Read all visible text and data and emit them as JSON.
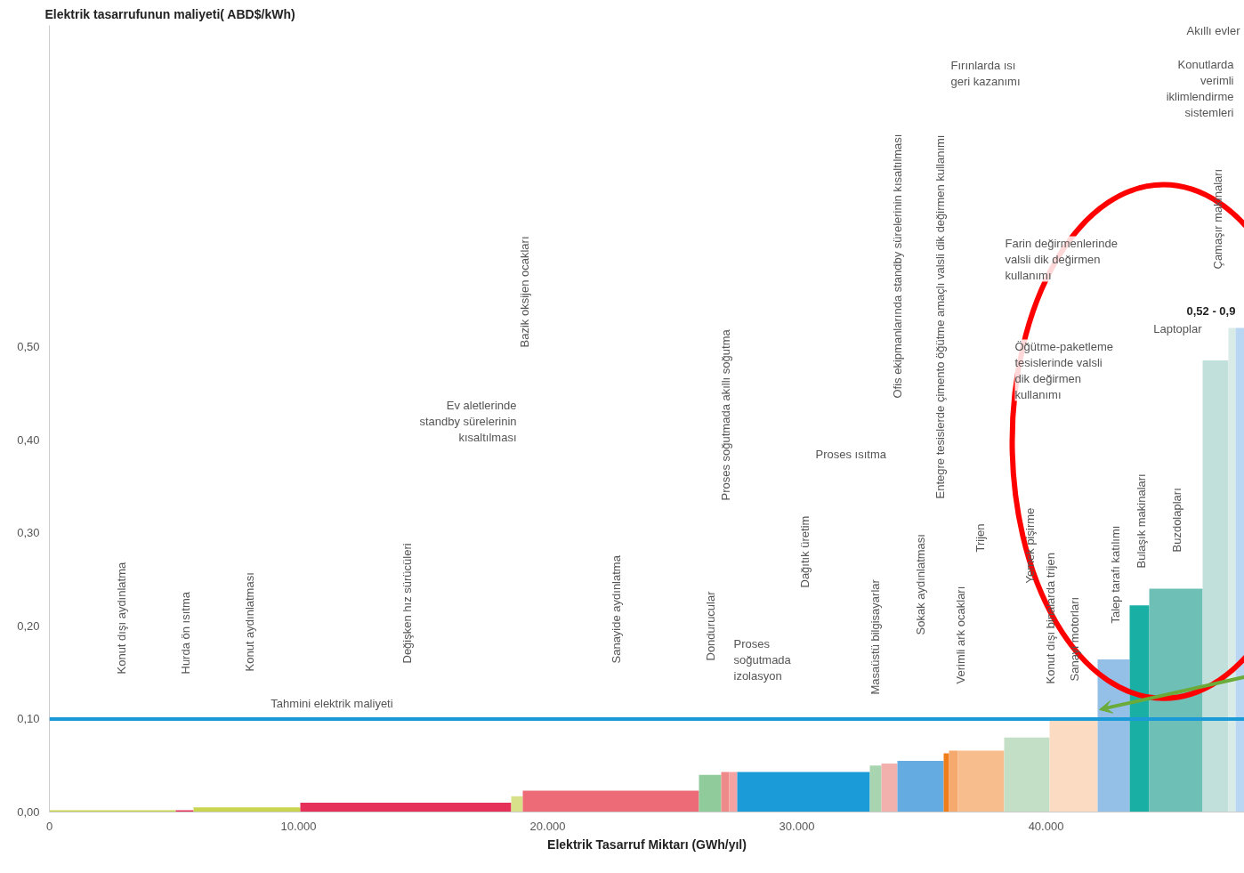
{
  "chart_data": {
    "type": "histogram",
    "ylabel": "Elektrik tasarrufunun maliyeti( ABD$/kWh)",
    "xlabel": "Elektrik Tasarruf Miktarı (GWh/yıl)",
    "bins": [
      0,
      5071,
      5786,
      10071,
      18536,
      19000,
      26071,
      26964,
      27286,
      27607,
      32929,
      33393,
      34036,
      35893,
      36107,
      36464,
      38321,
      40143,
      42071,
      43357,
      44143,
      46286,
      47321,
      47607,
      47964
    ],
    "values": [
      0.002,
      0.002,
      0.005,
      0.01,
      0.017,
      0.023,
      0.04,
      0.043,
      0.043,
      0.043,
      0.05,
      0.052,
      0.055,
      0.063,
      0.066,
      0.066,
      0.08,
      0.1,
      0.164,
      0.222,
      0.24,
      0.485,
      0.52,
      0.52
    ],
    "colors": [
      "#c9d54f",
      "#e5315a",
      "#c9d54f",
      "#e5315a",
      "#d8e08a",
      "#ec6b77",
      "#8fcb9b",
      "#ef8a8a",
      "#f4a3a3",
      "#1b9bd7",
      "#a8d5b0",
      "#f3b1ae",
      "#63abe0",
      "#ef7d1a",
      "#f6a96c",
      "#f8bd8c",
      "#c3e0c6",
      "#fbdcc3",
      "#94c0e8",
      "#1aafa5",
      "#6ebfb6",
      "#c1e0dc",
      "#d9ebe7",
      "#b9d6f2"
    ],
    "xlim": [
      0,
      47964
    ],
    "ylim": [
      0,
      0.845
    ],
    "xticks": [
      0,
      {
        "value": 10000,
        "label": "10.000"
      },
      {
        "value": 20000,
        "label": "20.000"
      },
      {
        "value": 30000,
        "label": "30.000"
      },
      {
        "value": 40000,
        "label": "40.000"
      }
    ],
    "yticks": [
      {
        "value": 0,
        "label": "0,00"
      },
      {
        "value": 0.1,
        "label": "0,10"
      },
      {
        "value": 0.2,
        "label": "0,20"
      },
      {
        "value": 0.3,
        "label": "0,30"
      },
      {
        "value": 0.4,
        "label": "0,40"
      },
      {
        "value": 0.5,
        "label": "0,50"
      }
    ],
    "grid": false,
    "ref_lines": [
      {
        "axis": "y",
        "value": 0.1,
        "label": "Tahmini elektrik maliyeti",
        "color": "#1a9ad6"
      }
    ],
    "annotations": [
      "Konut dışı aydınlatma",
      "Hurda ön ısıtma",
      "Konut aydınlatması",
      "Değişken hız sürücüleri",
      "Bazik oksijen ocakları",
      "Sanayide aydınlatma",
      "Dondurucular",
      "Proses soğutmada akıllı soğutma",
      "Dağıtık üretim",
      "Masaüstü bilgisayarlar",
      "Ofis ekipmanlarında standby sürelerinin kısaltılması",
      "Sokak aydınlatması",
      "Entegre tesislerde çimento öğütme amaçlı valsli dik değirmen kullanımı",
      "Verimli ark ocakları",
      "Trijen",
      "Yemek pişirme",
      "Konut dışı binalarda trijen",
      "Sanayi motorları",
      "Talep tarafı katılımı",
      "Bulaşık makinaları",
      "Buzdolapları",
      "Çamaşır makinaları",
      "Ev aletlerinde\nstandby sürelerinin\nkısaltılması",
      "Proses\nsoğutmada\nizolasyon",
      "Proses ısıtma",
      "Fırınlarda ısı\ngeri kazanımı",
      "Farin değirmenlerinde\nvalsli dik değirmen\nkullanımı",
      "Öğütme-paketleme\ntesislerinde valsli\ndik değirmen\nkullanımı",
      "Laptoplar",
      "0,52 - 0,9",
      "Konutlarda\nverimli\niklimlendirme\nsistemleri",
      "Akıllı evler"
    ]
  }
}
